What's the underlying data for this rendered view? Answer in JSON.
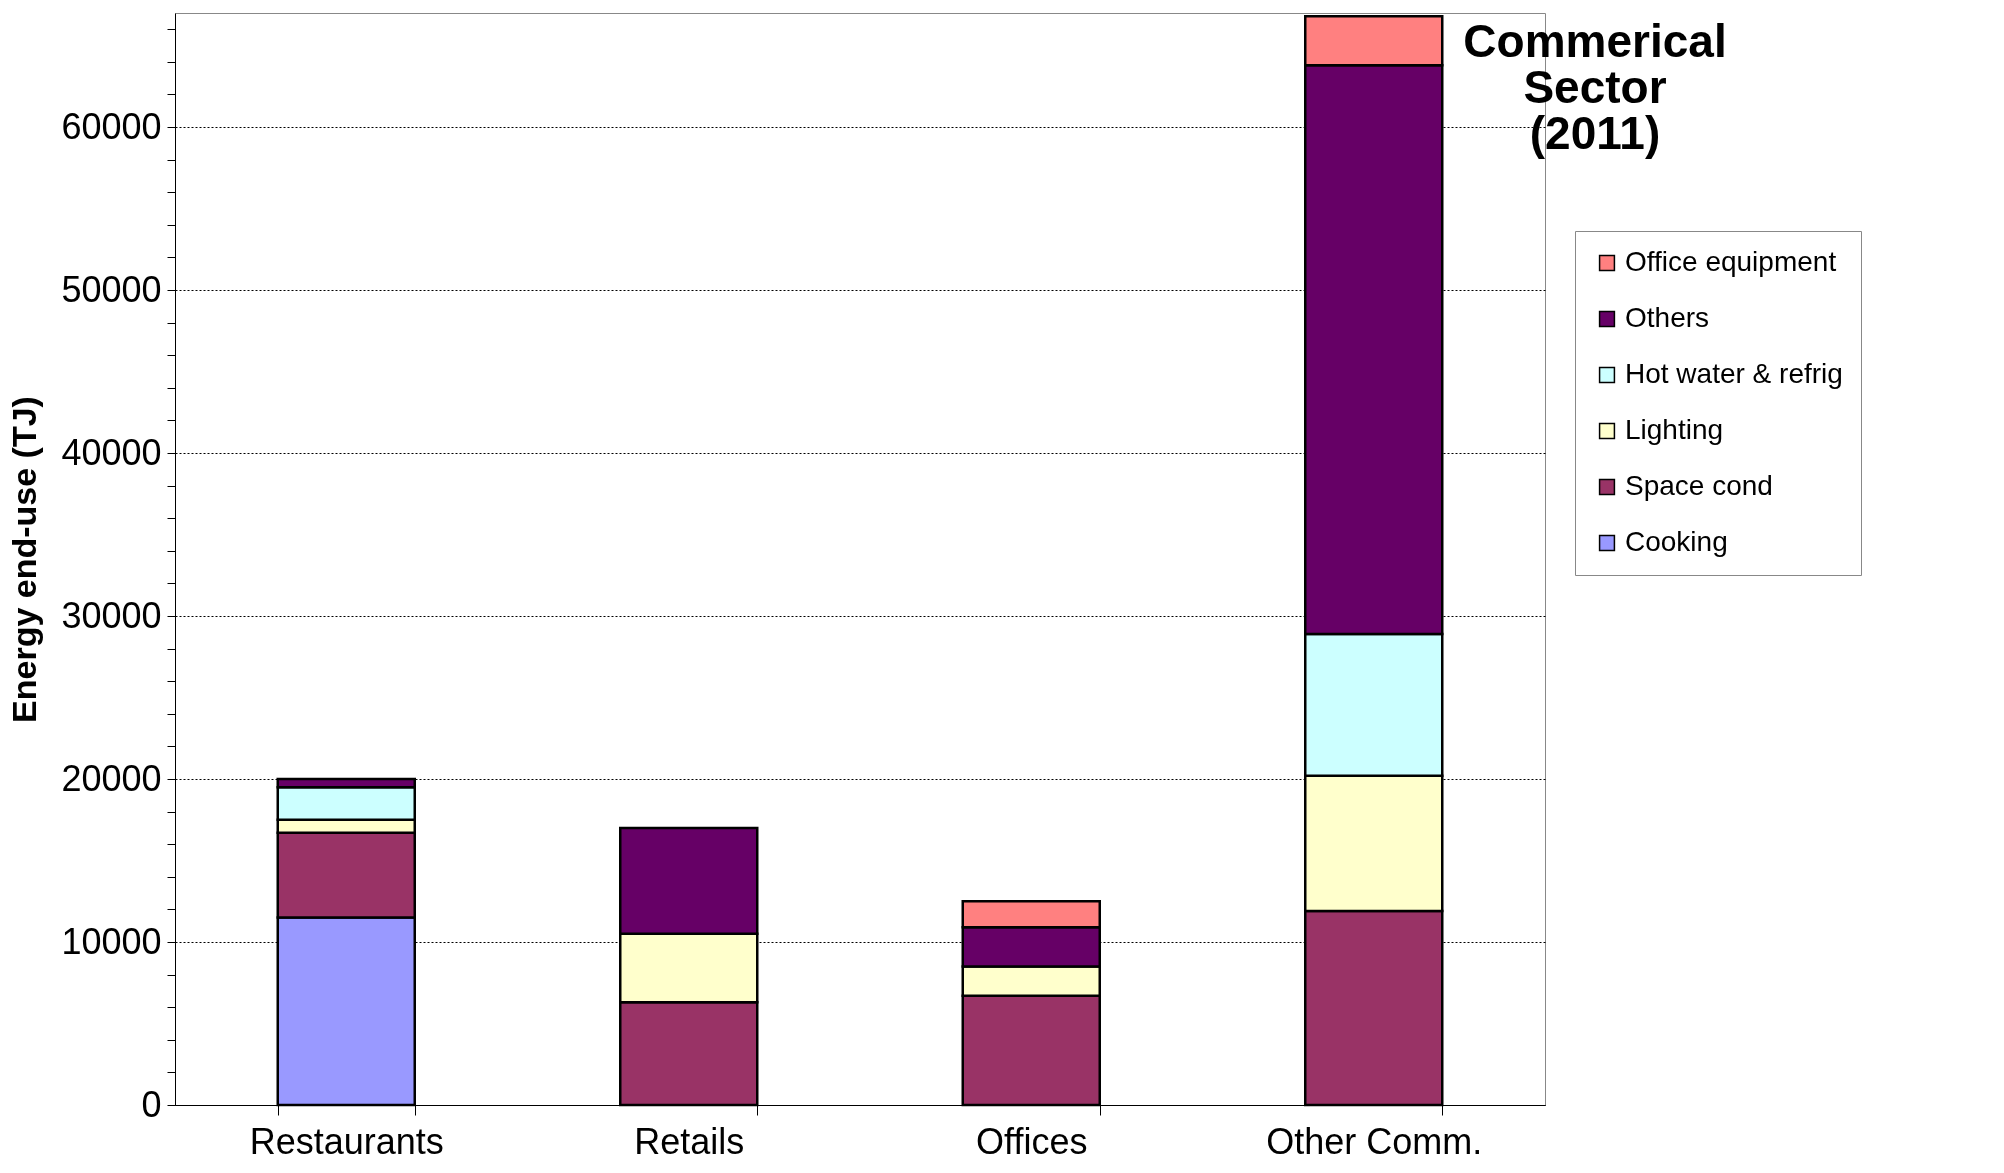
{
  "chart_data": {
    "type": "bar",
    "title": "Commerical Sector (2011)",
    "ylabel": "Energy end-use (TJ)",
    "categories": [
      "Restaurants",
      "Retails",
      "Offices",
      "Other Comm."
    ],
    "stacked": true,
    "series": [
      {
        "name": "Cooking",
        "color": "#9999ff",
        "values": [
          11500,
          null,
          null,
          null
        ]
      },
      {
        "name": "Space cond",
        "color": "#993366",
        "values": [
          5200,
          6300,
          6700,
          11900
        ]
      },
      {
        "name": "Lighting",
        "color": "#ffffcc",
        "values": [
          800,
          4200,
          1800,
          8300
        ]
      },
      {
        "name": "Hot water & refrig",
        "color": "#ccffff",
        "values": [
          2000,
          null,
          null,
          8700
        ]
      },
      {
        "name": "Others",
        "color": "#660066",
        "values": [
          500,
          6500,
          2400,
          34900
        ]
      },
      {
        "name": "Office equipment",
        "color": "#ff8080",
        "values": [
          null,
          null,
          1600,
          3000
        ]
      }
    ],
    "ylim": [
      0,
      67000
    ],
    "yticks": [
      0,
      {
        "value": 2000,
        "label": null
      },
      {
        "value": 4000,
        "label": null
      },
      {
        "value": 6000,
        "label": null
      },
      {
        "value": 8000,
        "label": null
      },
      10000,
      {
        "value": 12000,
        "label": null
      },
      {
        "value": 14000,
        "label": null
      },
      {
        "value": 16000,
        "label": null
      },
      {
        "value": 18000,
        "label": null
      },
      20000,
      {
        "value": 22000,
        "label": null
      },
      {
        "value": 24000,
        "label": null
      },
      {
        "value": 26000,
        "label": null
      },
      {
        "value": 28000,
        "label": null
      },
      30000,
      {
        "value": 32000,
        "label": null
      },
      {
        "value": 34000,
        "label": null
      },
      {
        "value": 36000,
        "label": null
      },
      {
        "value": 38000,
        "label": null
      },
      40000,
      {
        "value": 42000,
        "label": null
      },
      {
        "value": 44000,
        "label": null
      },
      {
        "value": 46000,
        "label": null
      },
      {
        "value": 48000,
        "label": null
      },
      50000,
      {
        "value": 52000,
        "label": null
      },
      {
        "value": 54000,
        "label": null
      },
      {
        "value": 56000,
        "label": null
      },
      {
        "value": 58000,
        "label": null
      },
      60000,
      {
        "value": 62000,
        "label": null
      },
      {
        "value": 64000,
        "label": null
      },
      {
        "value": 66000,
        "label": null
      }
    ],
    "grid": "y",
    "legend": "right"
  }
}
